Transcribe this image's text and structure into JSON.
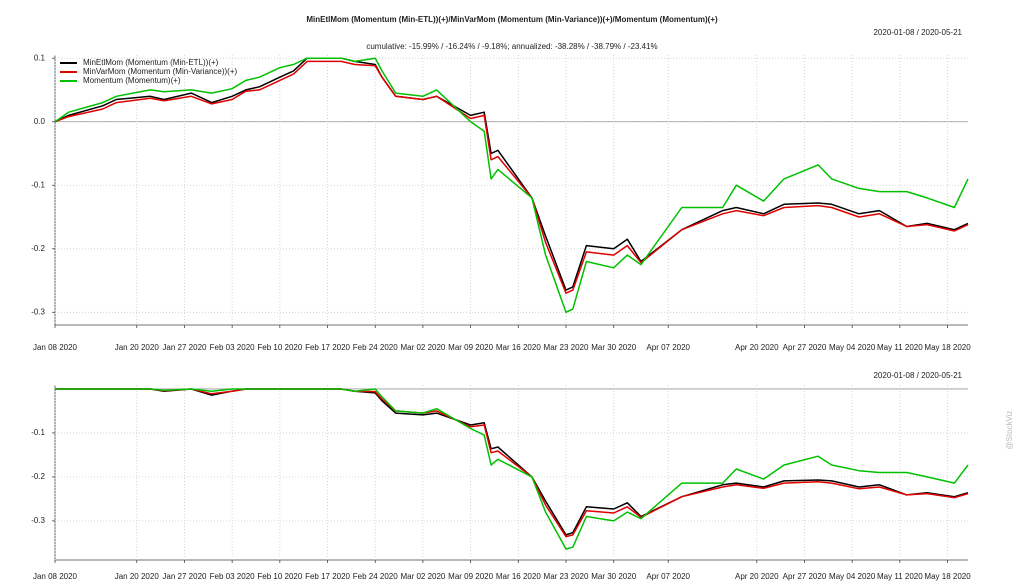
{
  "watermark": "@StockViz",
  "chart_data": [
    {
      "type": "line",
      "title": "MinEtlMom (Momentum (Min-ETL))(+)/MinVarMom (Momentum (Min-Variance))(+)/Momentum (Momentum)(+)",
      "subtitle": "cumulative: -15.99% / -16.24% / -9.18%; annualized: -38.28% / -38.79% / -23.41%",
      "date_range": "2020-01-08 / 2020-05-21",
      "xlim": [
        "2020-01-08",
        "2020-05-21"
      ],
      "xticks": [
        {
          "value": "2020-01-08",
          "label": "Jan 08 2020"
        },
        {
          "value": "2020-01-20",
          "label": "Jan 20 2020"
        },
        {
          "value": "2020-01-27",
          "label": "Jan 27 2020"
        },
        {
          "value": "2020-02-03",
          "label": "Feb 03 2020"
        },
        {
          "value": "2020-02-10",
          "label": "Feb 10 2020"
        },
        {
          "value": "2020-02-17",
          "label": "Feb 17 2020"
        },
        {
          "value": "2020-02-24",
          "label": "Feb 24 2020"
        },
        {
          "value": "2020-03-02",
          "label": "Mar 02 2020"
        },
        {
          "value": "2020-03-09",
          "label": "Mar 09 2020"
        },
        {
          "value": "2020-03-16",
          "label": "Mar 16 2020"
        },
        {
          "value": "2020-03-23",
          "label": "Mar 23 2020"
        },
        {
          "value": "2020-03-30",
          "label": "Mar 30 2020"
        },
        {
          "value": "2020-04-07",
          "label": "Apr 07 2020"
        },
        {
          "value": "2020-04-20",
          "label": "Apr 20 2020"
        },
        {
          "value": "2020-04-27",
          "label": "Apr 27 2020"
        },
        {
          "value": "2020-05-04",
          "label": "May 04 2020"
        },
        {
          "value": "2020-05-11",
          "label": "May 11 2020"
        },
        {
          "value": "2020-05-18",
          "label": "May 18 2020"
        }
      ],
      "ylim": [
        -0.32,
        0.105
      ],
      "yticks": [
        0.1,
        {
          "value": 0,
          "label": "0.0"
        },
        -0.1,
        -0.2,
        -0.3
      ],
      "grid": true,
      "legend": "top-left",
      "x": [
        "2020-01-08",
        "2020-01-10",
        "2020-01-15",
        "2020-01-17",
        "2020-01-22",
        "2020-01-24",
        "2020-01-28",
        "2020-01-31",
        "2020-02-03",
        "2020-02-05",
        "2020-02-07",
        "2020-02-10",
        "2020-02-12",
        "2020-02-14",
        "2020-02-19",
        "2020-02-21",
        "2020-02-24",
        "2020-02-25",
        "2020-02-27",
        "2020-03-02",
        "2020-03-04",
        "2020-03-09",
        "2020-03-11",
        "2020-03-12",
        "2020-03-13",
        "2020-03-18",
        "2020-03-20",
        "2020-03-23",
        "2020-03-24",
        "2020-03-26",
        "2020-03-30",
        "2020-04-01",
        "2020-04-03",
        "2020-04-09",
        "2020-04-15",
        "2020-04-17",
        "2020-04-21",
        "2020-04-24",
        "2020-04-29",
        "2020-05-01",
        "2020-05-05",
        "2020-05-08",
        "2020-05-12",
        "2020-05-15",
        "2020-05-19",
        "2020-05-21"
      ],
      "series": [
        {
          "name": "MinEtlMom (Momentum (Min-ETL))(+)",
          "color": "#000000",
          "values": [
            0,
            0.01,
            0.025,
            0.035,
            0.04,
            0.035,
            0.045,
            0.03,
            0.04,
            0.05,
            0.055,
            0.07,
            0.08,
            0.1,
            0.1,
            0.095,
            0.09,
            0.07,
            0.04,
            0.035,
            0.04,
            0.01,
            0.015,
            -0.05,
            -0.045,
            -0.12,
            -0.18,
            -0.265,
            -0.26,
            -0.195,
            -0.2,
            -0.185,
            -0.22,
            -0.17,
            -0.14,
            -0.135,
            -0.145,
            -0.13,
            -0.128,
            -0.13,
            -0.145,
            -0.14,
            -0.165,
            -0.16,
            -0.17,
            -0.16
          ]
        },
        {
          "name": "MinVarMom (Momentum (Min-Variance))(+)",
          "color": "#e00000",
          "values": [
            0,
            0.008,
            0.02,
            0.03,
            0.037,
            0.033,
            0.04,
            0.028,
            0.035,
            0.048,
            0.05,
            0.065,
            0.075,
            0.095,
            0.095,
            0.09,
            0.088,
            0.07,
            0.04,
            0.035,
            0.04,
            0.005,
            0.01,
            -0.06,
            -0.055,
            -0.12,
            -0.19,
            -0.27,
            -0.265,
            -0.205,
            -0.21,
            -0.195,
            -0.222,
            -0.17,
            -0.145,
            -0.14,
            -0.148,
            -0.135,
            -0.132,
            -0.135,
            -0.15,
            -0.145,
            -0.165,
            -0.162,
            -0.172,
            -0.162
          ]
        },
        {
          "name": "Momentum (Momentum)(+)",
          "color": "#00c000",
          "values": [
            0,
            0.015,
            0.03,
            0.04,
            0.05,
            0.047,
            0.05,
            0.045,
            0.052,
            0.065,
            0.07,
            0.085,
            0.09,
            0.1,
            0.1,
            0.095,
            0.1,
            0.08,
            0.045,
            0.04,
            0.05,
            0,
            -0.015,
            -0.09,
            -0.075,
            -0.12,
            -0.21,
            -0.3,
            -0.295,
            -0.22,
            -0.23,
            -0.21,
            -0.225,
            -0.135,
            -0.135,
            -0.1,
            -0.125,
            -0.09,
            -0.068,
            -0.09,
            -0.105,
            -0.11,
            -0.11,
            -0.12,
            -0.135,
            -0.09
          ]
        }
      ]
    },
    {
      "type": "line",
      "date_range": "2020-01-08 / 2020-05-21",
      "xlim": [
        "2020-01-08",
        "2020-05-21"
      ],
      "xticks": [
        {
          "value": "2020-01-08",
          "label": "Jan 08 2020"
        },
        {
          "value": "2020-01-20",
          "label": "Jan 20 2020"
        },
        {
          "value": "2020-01-27",
          "label": "Jan 27 2020"
        },
        {
          "value": "2020-02-03",
          "label": "Feb 03 2020"
        },
        {
          "value": "2020-02-10",
          "label": "Feb 10 2020"
        },
        {
          "value": "2020-02-17",
          "label": "Feb 17 2020"
        },
        {
          "value": "2020-02-24",
          "label": "Feb 24 2020"
        },
        {
          "value": "2020-03-02",
          "label": "Mar 02 2020"
        },
        {
          "value": "2020-03-09",
          "label": "Mar 09 2020"
        },
        {
          "value": "2020-03-16",
          "label": "Mar 16 2020"
        },
        {
          "value": "2020-03-23",
          "label": "Mar 23 2020"
        },
        {
          "value": "2020-03-30",
          "label": "Mar 30 2020"
        },
        {
          "value": "2020-04-07",
          "label": "Apr 07 2020"
        },
        {
          "value": "2020-04-20",
          "label": "Apr 20 2020"
        },
        {
          "value": "2020-04-27",
          "label": "Apr 27 2020"
        },
        {
          "value": "2020-05-04",
          "label": "May 04 2020"
        },
        {
          "value": "2020-05-11",
          "label": "May 11 2020"
        },
        {
          "value": "2020-05-18",
          "label": "May 18 2020"
        }
      ],
      "ylim": [
        -0.389,
        0.009
      ],
      "yticks": [
        -0.1,
        -0.2,
        -0.3
      ],
      "grid": true,
      "x": [
        "2020-01-08",
        "2020-01-10",
        "2020-01-15",
        "2020-01-17",
        "2020-01-22",
        "2020-01-24",
        "2020-01-28",
        "2020-01-31",
        "2020-02-03",
        "2020-02-05",
        "2020-02-07",
        "2020-02-10",
        "2020-02-12",
        "2020-02-14",
        "2020-02-19",
        "2020-02-21",
        "2020-02-24",
        "2020-02-25",
        "2020-02-27",
        "2020-03-02",
        "2020-03-04",
        "2020-03-09",
        "2020-03-11",
        "2020-03-12",
        "2020-03-13",
        "2020-03-18",
        "2020-03-20",
        "2020-03-23",
        "2020-03-24",
        "2020-03-26",
        "2020-03-30",
        "2020-04-01",
        "2020-04-03",
        "2020-04-09",
        "2020-04-15",
        "2020-04-17",
        "2020-04-21",
        "2020-04-24",
        "2020-04-29",
        "2020-05-01",
        "2020-05-05",
        "2020-05-08",
        "2020-05-12",
        "2020-05-15",
        "2020-05-19",
        "2020-05-21"
      ],
      "series": [
        {
          "color": "#000000",
          "values": [
            0,
            0,
            0,
            0,
            0,
            -0.005,
            0,
            -0.014,
            -0.005,
            0,
            0,
            0,
            0,
            0,
            0,
            -0.005,
            -0.009,
            -0.027,
            -0.055,
            -0.059,
            -0.055,
            -0.082,
            -0.077,
            -0.136,
            -0.132,
            -0.2,
            -0.255,
            -0.332,
            -0.327,
            -0.268,
            -0.273,
            -0.259,
            -0.29,
            -0.245,
            -0.218,
            -0.214,
            -0.223,
            -0.209,
            -0.207,
            -0.209,
            -0.223,
            -0.218,
            -0.241,
            -0.236,
            -0.245,
            -0.236
          ]
        },
        {
          "color": "#e00000",
          "values": [
            0,
            0,
            0,
            0,
            0,
            -0.004,
            0,
            -0.011,
            -0.005,
            0,
            0,
            0,
            0,
            0,
            0,
            -0.005,
            -0.006,
            -0.023,
            -0.05,
            -0.055,
            -0.05,
            -0.086,
            -0.082,
            -0.145,
            -0.141,
            -0.2,
            -0.264,
            -0.336,
            -0.332,
            -0.277,
            -0.282,
            -0.268,
            -0.292,
            -0.245,
            -0.223,
            -0.218,
            -0.226,
            -0.214,
            -0.211,
            -0.214,
            -0.227,
            -0.223,
            -0.241,
            -0.238,
            -0.247,
            -0.238
          ]
        },
        {
          "color": "#00c000",
          "values": [
            0,
            0,
            0,
            0,
            0,
            -0.003,
            0,
            -0.005,
            0,
            0,
            0,
            0,
            0,
            0,
            0,
            -0.005,
            0,
            -0.018,
            -0.05,
            -0.055,
            -0.045,
            -0.09,
            -0.105,
            -0.173,
            -0.16,
            -0.2,
            -0.28,
            -0.364,
            -0.36,
            -0.29,
            -0.3,
            -0.28,
            -0.295,
            -0.214,
            -0.214,
            -0.182,
            -0.205,
            -0.173,
            -0.153,
            -0.173,
            -0.186,
            -0.19,
            -0.19,
            -0.2,
            -0.214,
            -0.173
          ]
        }
      ]
    }
  ]
}
